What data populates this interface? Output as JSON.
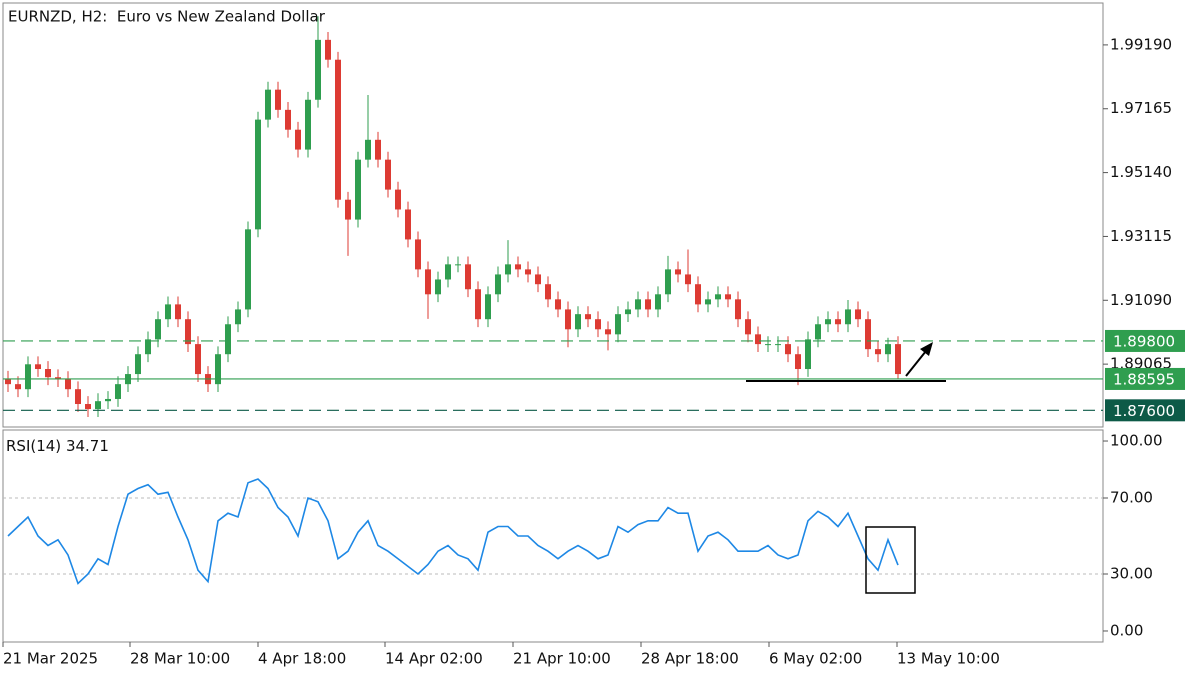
{
  "chart_data": [
    {
      "type": "candlestick",
      "title": "EURNZD, H2:  Euro vs New Zealand Dollar",
      "xlim": [
        -0.5,
        109.5
      ],
      "ylim": [
        1.87071,
        2.00519
      ],
      "up_color": "#2f9e4f",
      "down_color": "#dd3b33",
      "yticks": [
        {
          "value": 1.9919,
          "label": "1.99190"
        },
        {
          "value": 1.97165,
          "label": "1.97165"
        },
        {
          "value": 1.9514,
          "label": "1.95140"
        },
        {
          "value": 1.93115,
          "label": "1.93115"
        },
        {
          "value": 1.9109,
          "label": "1.91090"
        },
        {
          "value": 1.89065,
          "label": "1.89065"
        }
      ],
      "levels": [
        {
          "value": 1.898,
          "label": "1.89800",
          "color": "#2f9e4f",
          "dashed": true
        },
        {
          "value": 1.88595,
          "label": "1.88595",
          "color": "#2f9e4f",
          "dashed": false
        },
        {
          "value": 1.876,
          "label": "1.87600",
          "color": "#0d5a47",
          "dashed": true
        }
      ],
      "open": [
        1.886,
        1.8843,
        1.8827,
        1.8906,
        1.8891,
        1.8865,
        1.8859,
        1.8827,
        1.878,
        1.8764,
        1.8789,
        1.8796,
        1.8843,
        1.8875,
        1.8938,
        1.8985,
        1.9049,
        1.9096,
        1.9049,
        1.897,
        1.8875,
        1.8843,
        1.8938,
        1.9033,
        1.908,
        1.9334,
        1.9682,
        1.9777,
        1.9713,
        1.965,
        1.9587,
        1.9745,
        1.9935,
        1.9872,
        1.9428,
        1.9365,
        1.9555,
        1.9618,
        1.9555,
        1.946,
        1.9397,
        1.9302,
        1.9207,
        1.9128,
        1.9175,
        1.9223,
        1.9223,
        1.9144,
        1.9049,
        1.9128,
        1.9191,
        1.9223,
        1.9207,
        1.9191,
        1.916,
        1.9112,
        1.908,
        1.9017,
        1.9065,
        1.9049,
        1.9017,
        1.9001,
        1.9065,
        1.908,
        1.9112,
        1.908,
        1.9128,
        1.9207,
        1.9191,
        1.916,
        1.9096,
        1.9112,
        1.9128,
        1.9112,
        1.9049,
        1.9001,
        1.897,
        1.897,
        1.897,
        1.8938,
        1.8891,
        1.8985,
        1.9033,
        1.9049,
        1.9033,
        1.908,
        1.9049,
        1.8954,
        1.8938,
        1.897
      ],
      "high": [
        1.8885,
        1.8868,
        1.8931,
        1.8931,
        1.8916,
        1.889,
        1.8884,
        1.8852,
        1.8805,
        1.8814,
        1.8821,
        1.8868,
        1.89,
        1.8963,
        1.901,
        1.9074,
        1.9121,
        1.9121,
        1.9074,
        1.8995,
        1.89,
        1.8963,
        1.9058,
        1.9105,
        1.9359,
        1.9707,
        1.9802,
        1.9802,
        1.9738,
        1.9675,
        1.977,
        2.001,
        1.996,
        1.9897,
        1.9453,
        1.958,
        1.976,
        1.9643,
        1.958,
        1.9485,
        1.9422,
        1.9327,
        1.9232,
        1.92,
        1.9248,
        1.9248,
        1.9248,
        1.9169,
        1.9153,
        1.9216,
        1.93,
        1.9248,
        1.9232,
        1.9216,
        1.9185,
        1.9137,
        1.9105,
        1.909,
        1.909,
        1.9074,
        1.9042,
        1.909,
        1.9105,
        1.9137,
        1.9137,
        1.9153,
        1.925,
        1.9232,
        1.927,
        1.9185,
        1.9137,
        1.9153,
        1.9153,
        1.9137,
        1.9074,
        1.9026,
        1.8995,
        1.8995,
        1.8995,
        1.8963,
        1.901,
        1.9058,
        1.9074,
        1.9074,
        1.911,
        1.9105,
        1.9074,
        1.8979,
        1.899,
        1.8995
      ],
      "low": [
        1.8818,
        1.8802,
        1.8802,
        1.8866,
        1.884,
        1.8834,
        1.8802,
        1.8755,
        1.8739,
        1.8739,
        1.8764,
        1.8771,
        1.8818,
        1.885,
        1.8913,
        1.896,
        1.9024,
        1.9024,
        1.8945,
        1.885,
        1.8818,
        1.8818,
        1.8913,
        1.9008,
        1.9055,
        1.9309,
        1.9657,
        1.9688,
        1.9625,
        1.9562,
        1.9562,
        1.972,
        1.9847,
        1.9403,
        1.925,
        1.934,
        1.953,
        1.953,
        1.9435,
        1.9372,
        1.9277,
        1.9182,
        1.905,
        1.9103,
        1.915,
        1.9198,
        1.9119,
        1.9024,
        1.9024,
        1.9103,
        1.9166,
        1.9182,
        1.9166,
        1.9135,
        1.9087,
        1.9055,
        1.896,
        1.8992,
        1.9024,
        1.8992,
        1.895,
        1.8976,
        1.904,
        1.9055,
        1.9055,
        1.9055,
        1.9103,
        1.9166,
        1.9135,
        1.9071,
        1.9071,
        1.9087,
        1.9087,
        1.9024,
        1.8976,
        1.8945,
        1.8945,
        1.8945,
        1.8913,
        1.884,
        1.8866,
        1.896,
        1.9008,
        1.9008,
        1.9008,
        1.9024,
        1.8929,
        1.8913,
        1.8913,
        1.886
      ],
      "close": [
        1.8843,
        1.8827,
        1.8906,
        1.8891,
        1.8865,
        1.8859,
        1.8827,
        1.878,
        1.8764,
        1.8789,
        1.8796,
        1.8843,
        1.8875,
        1.8938,
        1.8985,
        1.9049,
        1.9096,
        1.9049,
        1.897,
        1.8875,
        1.8843,
        1.8938,
        1.9033,
        1.908,
        1.9334,
        1.9682,
        1.9777,
        1.9713,
        1.965,
        1.9587,
        1.9745,
        1.9935,
        1.9872,
        1.9428,
        1.9365,
        1.9555,
        1.9618,
        1.9555,
        1.946,
        1.9397,
        1.9302,
        1.9207,
        1.9128,
        1.9175,
        1.9223,
        1.9223,
        1.9144,
        1.9049,
        1.9128,
        1.9191,
        1.9223,
        1.9207,
        1.9191,
        1.916,
        1.9112,
        1.908,
        1.9017,
        1.9065,
        1.9049,
        1.9017,
        1.9001,
        1.9065,
        1.908,
        1.9112,
        1.908,
        1.9128,
        1.9207,
        1.9191,
        1.916,
        1.9096,
        1.9112,
        1.9128,
        1.9112,
        1.9049,
        1.9001,
        1.897,
        1.897,
        1.897,
        1.8938,
        1.8891,
        1.8985,
        1.9033,
        1.9049,
        1.9033,
        1.908,
        1.9049,
        1.8954,
        1.8938,
        1.897,
        1.8875
      ]
    },
    {
      "type": "line",
      "title": "RSI(14)",
      "xlim": [
        -0.5,
        109.5
      ],
      "ylim": [
        -5.8,
        105.8
      ],
      "yticks": [
        {
          "value": 100,
          "label": "100.00"
        },
        {
          "value": 70,
          "label": "70.00"
        },
        {
          "value": 30,
          "label": "30.00"
        },
        {
          "value": 0,
          "label": "0.00"
        }
      ],
      "levels": [
        70,
        30
      ],
      "xticks": [
        {
          "value": -0.5,
          "label": "21 Mar 2025"
        },
        {
          "value": 12.2,
          "label": "28 Mar 10:00"
        },
        {
          "value": 25,
          "label": "4 Apr 18:00"
        },
        {
          "value": 37.7,
          "label": "14 Apr 02:00"
        },
        {
          "value": 50.5,
          "label": "21 Apr 10:00"
        },
        {
          "value": 63.3,
          "label": "28 Apr 18:00"
        },
        {
          "value": 76.1,
          "label": "6 May 02:00"
        },
        {
          "value": 88.9,
          "label": "13 May 10:00"
        }
      ],
      "series": [
        {
          "color": "#1e88e5",
          "values": [
            50,
            55,
            60,
            50,
            45,
            48,
            40,
            25,
            30,
            38,
            35,
            55,
            72,
            75,
            77,
            72,
            73,
            60,
            48,
            32,
            26,
            58,
            62,
            60,
            78,
            80,
            75,
            65,
            60,
            50,
            70,
            68,
            58,
            38,
            42,
            52,
            58,
            45,
            42,
            38,
            34,
            30,
            35,
            42,
            45,
            40,
            38,
            32,
            52,
            55,
            55,
            50,
            50,
            45,
            42,
            38,
            42,
            45,
            42,
            38,
            40,
            55,
            52,
            56,
            58,
            58,
            65,
            62,
            62,
            42,
            50,
            52,
            48,
            42,
            42,
            42,
            45,
            40,
            38,
            40,
            58,
            63,
            60,
            55,
            62,
            50,
            38,
            32,
            48,
            34.71
          ]
        }
      ]
    }
  ]
}
